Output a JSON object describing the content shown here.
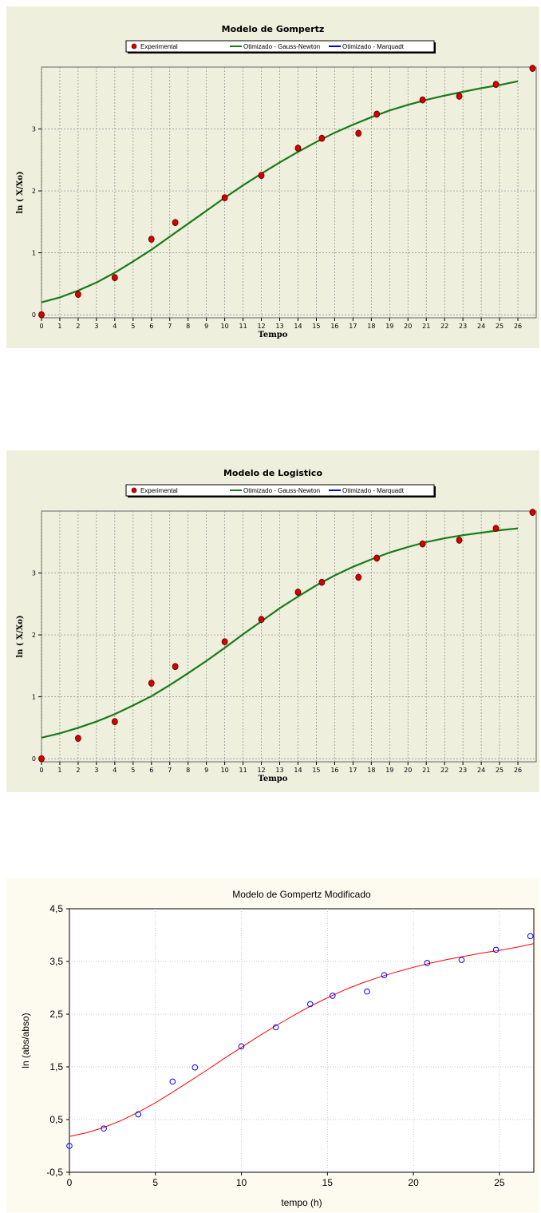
{
  "chart_data": [
    {
      "type": "scatter",
      "title": "Modelo de Gompertz",
      "xlabel": "Tempo",
      "ylabel": "ln ( X/Xo)",
      "xlim": [
        0,
        27
      ],
      "ylim": [
        -0.05,
        4
      ],
      "x_ticks": [
        "0",
        "1",
        "2",
        "3",
        "4",
        "5",
        "6",
        "7",
        "8",
        "9",
        "10",
        "11",
        "12",
        "13",
        "14",
        "15",
        "16",
        "17",
        "18",
        "19",
        "20",
        "21",
        "22",
        "23",
        "24",
        "25",
        "26"
      ],
      "y_ticks": [
        "0",
        "1",
        "2",
        "3"
      ],
      "legend": [
        "Experimental",
        "Otimizado - Gauss-Newton",
        "Otimizado - Marquadt"
      ],
      "legend_placement": "top",
      "grid": true,
      "colors": {
        "points": "#d40000",
        "fit": "#1a7a1a",
        "marquardt": "#0000cc",
        "background": "#efefde"
      },
      "series": [
        {
          "name": "Experimental",
          "kind": "points",
          "x": [
            0,
            2,
            4,
            6,
            7.3,
            10,
            12,
            14,
            15.3,
            17.3,
            18.3,
            20.8,
            22.8,
            24.8,
            26.8
          ],
          "y": [
            0,
            0.33,
            0.6,
            1.22,
            1.49,
            1.89,
            2.25,
            2.69,
            2.85,
            2.93,
            3.24,
            3.47,
            3.53,
            3.72,
            3.98
          ]
        },
        {
          "name": "Otimizado - Gauss-Newton",
          "kind": "line",
          "x": [
            0,
            1,
            2,
            3,
            4,
            5,
            6,
            7,
            8,
            9,
            10,
            11,
            12,
            13,
            14,
            15,
            16,
            17,
            18,
            19,
            20,
            21,
            22,
            23,
            24,
            25,
            26
          ],
          "y": [
            0.2,
            0.28,
            0.39,
            0.52,
            0.68,
            0.86,
            1.05,
            1.26,
            1.47,
            1.68,
            1.89,
            2.09,
            2.28,
            2.46,
            2.63,
            2.79,
            2.94,
            3.07,
            3.19,
            3.3,
            3.39,
            3.47,
            3.54,
            3.6,
            3.66,
            3.71,
            3.77
          ]
        }
      ]
    },
    {
      "type": "scatter",
      "title": "Modelo de Logistico",
      "xlabel": "Tempo",
      "ylabel": "ln ( X/Xo)",
      "xlim": [
        0,
        27
      ],
      "ylim": [
        -0.05,
        4
      ],
      "x_ticks": [
        "0",
        "1",
        "2",
        "3",
        "4",
        "5",
        "6",
        "7",
        "8",
        "9",
        "10",
        "11",
        "12",
        "13",
        "14",
        "15",
        "16",
        "17",
        "18",
        "19",
        "20",
        "21",
        "22",
        "23",
        "24",
        "25",
        "26"
      ],
      "y_ticks": [
        "0",
        "1",
        "2",
        "3"
      ],
      "legend": [
        "Experimental",
        "Otimizado - Gauss-Newton",
        "Otimizado - Marquadt"
      ],
      "legend_placement": "top",
      "grid": true,
      "colors": {
        "points": "#d40000",
        "fit": "#1a7a1a",
        "marquardt": "#0000cc",
        "background": "#efefde"
      },
      "series": [
        {
          "name": "Experimental",
          "kind": "points",
          "x": [
            0,
            2,
            4,
            6,
            7.3,
            10,
            12,
            14,
            15.3,
            17.3,
            18.3,
            20.8,
            22.8,
            24.8,
            26.8
          ],
          "y": [
            0,
            0.33,
            0.6,
            1.22,
            1.49,
            1.89,
            2.25,
            2.69,
            2.85,
            2.93,
            3.24,
            3.47,
            3.53,
            3.72,
            3.98
          ]
        },
        {
          "name": "Otimizado - Gauss-Newton",
          "kind": "line",
          "x": [
            0,
            1,
            2,
            3,
            4,
            5,
            6,
            7,
            8,
            9,
            10,
            11,
            12,
            13,
            14,
            15,
            16,
            17,
            18,
            19,
            20,
            21,
            22,
            23,
            24,
            25,
            26
          ],
          "y": [
            0.34,
            0.41,
            0.5,
            0.6,
            0.72,
            0.86,
            1.01,
            1.19,
            1.38,
            1.58,
            1.79,
            2.01,
            2.22,
            2.43,
            2.62,
            2.8,
            2.96,
            3.1,
            3.22,
            3.33,
            3.42,
            3.5,
            3.56,
            3.61,
            3.65,
            3.69,
            3.72
          ]
        }
      ]
    },
    {
      "type": "scatter",
      "title": "Modelo de Gompertz Modificado",
      "xlabel": "tempo (h)",
      "ylabel": "ln (abs/abso)",
      "xlim": [
        0,
        27
      ],
      "ylim": [
        -0.5,
        4.5
      ],
      "x_ticks": [
        "0",
        "5",
        "10",
        "15",
        "20",
        "25"
      ],
      "y_ticks": [
        "-0,5",
        "0,5",
        "1,5",
        "2,5",
        "3,5",
        "4,5"
      ],
      "grid": true,
      "colors": {
        "points": "#0000ff",
        "fit": "#ff0000",
        "background": "#fdfaf0"
      },
      "series": [
        {
          "kind": "points",
          "x": [
            0,
            2,
            4,
            6,
            7.3,
            10,
            12,
            14,
            15.3,
            17.3,
            18.3,
            20.8,
            22.8,
            24.8,
            26.8
          ],
          "y": [
            0,
            0.33,
            0.6,
            1.22,
            1.49,
            1.89,
            2.25,
            2.69,
            2.85,
            2.93,
            3.24,
            3.47,
            3.53,
            3.72,
            3.98
          ]
        },
        {
          "kind": "line",
          "x": [
            0,
            1,
            2,
            3,
            4,
            5,
            6,
            7,
            8,
            9,
            10,
            11,
            12,
            13,
            14,
            15,
            16,
            17,
            18,
            19,
            20,
            21,
            22,
            23,
            24,
            25,
            26,
            27
          ],
          "y": [
            0.18,
            0.25,
            0.35,
            0.48,
            0.64,
            0.82,
            1.02,
            1.23,
            1.44,
            1.66,
            1.87,
            2.08,
            2.28,
            2.47,
            2.65,
            2.81,
            2.96,
            3.09,
            3.2,
            3.3,
            3.39,
            3.47,
            3.54,
            3.6,
            3.66,
            3.71,
            3.77,
            3.84
          ]
        }
      ]
    }
  ]
}
